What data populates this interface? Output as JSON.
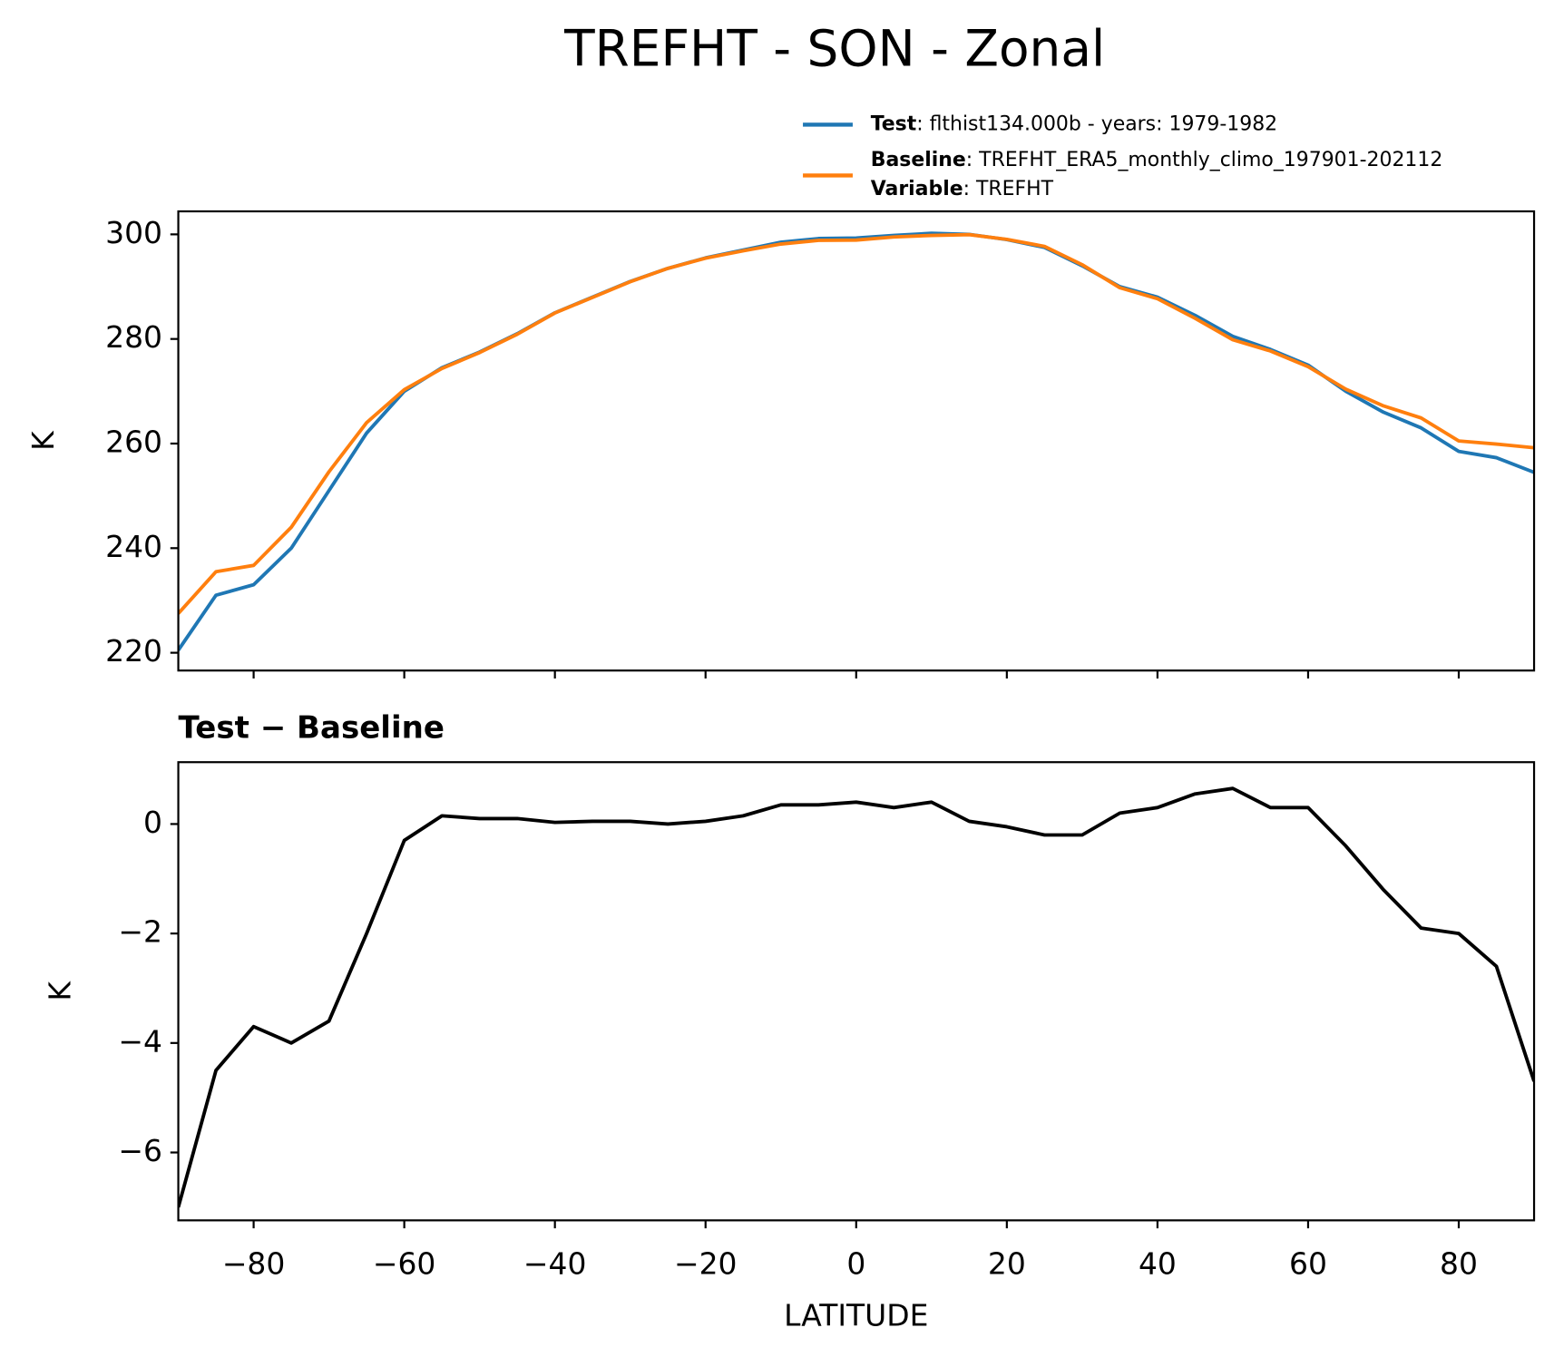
{
  "chart_data": [
    {
      "type": "line",
      "title": "TREFHT - SON - Zonal",
      "ylabel": "K",
      "x": [
        -90,
        -85,
        -80,
        -75,
        -70,
        -65,
        -60,
        -55,
        -50,
        -45,
        -40,
        -35,
        -30,
        -25,
        -20,
        -15,
        -10,
        -5,
        0,
        5,
        10,
        15,
        20,
        25,
        30,
        35,
        40,
        45,
        50,
        55,
        60,
        65,
        70,
        75,
        80,
        85,
        90
      ],
      "series": [
        {
          "name": "Test",
          "label": ": flthist134.000b - years: 1979-1982",
          "color": "#1f77b4",
          "values": [
            220.5,
            231,
            233,
            240,
            251,
            262,
            270,
            274.5,
            277.5,
            281,
            285,
            288,
            291,
            293.5,
            295.5,
            297,
            298.5,
            299.2,
            299.3,
            299.8,
            300.2,
            300,
            299,
            297.5,
            294,
            290,
            288,
            284.5,
            280.5,
            278,
            275,
            270,
            266,
            263,
            258.5,
            257.3,
            254.5
          ]
        },
        {
          "name": "Baseline",
          "label": ": TREFHT_ERA5_monthly_climo_197901-202112",
          "color": "#ff7f0e",
          "values": [
            227.5,
            235.5,
            236.7,
            244,
            254.6,
            264,
            270.3,
            274.35,
            277.4,
            280.9,
            284.97,
            287.95,
            290.95,
            293.5,
            295.45,
            296.85,
            298.15,
            298.85,
            298.9,
            299.5,
            299.8,
            299.95,
            299.05,
            297.7,
            294.2,
            289.8,
            287.7,
            283.95,
            279.85,
            277.7,
            274.7,
            270.4,
            267.2,
            264.9,
            260.5,
            259.9,
            259.2
          ]
        }
      ],
      "legend_note": {
        "name": "Variable",
        "label": ": TREFHT"
      },
      "xlim": [
        -90,
        90
      ],
      "xticks": [
        -80,
        -60,
        -40,
        -20,
        0,
        20,
        40,
        60,
        80
      ],
      "ylim": [
        216.6,
        304.4
      ],
      "yticks": [
        220,
        240,
        260,
        280,
        300
      ]
    },
    {
      "type": "line",
      "title": "Test − Baseline",
      "ylabel": "K",
      "xlabel": "LATITUDE",
      "x": [
        -90,
        -85,
        -80,
        -75,
        -70,
        -65,
        -60,
        -55,
        -50,
        -45,
        -40,
        -35,
        -30,
        -25,
        -20,
        -15,
        -10,
        -5,
        0,
        5,
        10,
        15,
        20,
        25,
        30,
        35,
        40,
        45,
        50,
        55,
        60,
        65,
        70,
        75,
        80,
        85,
        90
      ],
      "series": [
        {
          "name": "Test − Baseline",
          "color": "#000000",
          "values": [
            -7,
            -4.5,
            -3.7,
            -4,
            -3.6,
            -2,
            -0.3,
            0.15,
            0.1,
            0.1,
            0.03,
            0.05,
            0.05,
            0,
            0.05,
            0.15,
            0.35,
            0.35,
            0.4,
            0.3,
            0.4,
            0.05,
            -0.05,
            -0.2,
            -0.2,
            0.2,
            0.3,
            0.55,
            0.65,
            0.3,
            0.3,
            -0.4,
            -1.2,
            -1.9,
            -2.0,
            -2.6,
            -4.7
          ]
        }
      ],
      "xlim": [
        -90,
        90
      ],
      "xticks": [
        {
          "value": -80,
          "label": "−80"
        },
        {
          "value": -60,
          "label": "−60"
        },
        {
          "value": -40,
          "label": "−40"
        },
        {
          "value": -20,
          "label": "−20"
        },
        0,
        20,
        40,
        60,
        80
      ],
      "ylim": [
        -7.24,
        1.13
      ],
      "yticks": [
        {
          "value": -6,
          "label": "−6"
        },
        {
          "value": -4,
          "label": "−4"
        },
        {
          "value": -2,
          "label": "−2"
        },
        0
      ]
    }
  ]
}
